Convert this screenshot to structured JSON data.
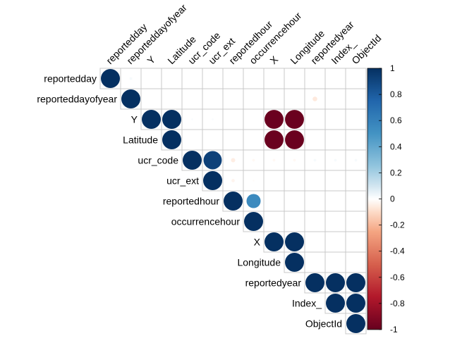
{
  "chart_data": {
    "type": "heatmap",
    "variables": [
      "reportedday",
      "reporteddayofyear",
      "Y",
      "Latitude",
      "ucr_code",
      "ucr_ext",
      "reportedhour",
      "occurrencehour",
      "X",
      "Longitude",
      "reportedyear",
      "Index_",
      "ObjectId"
    ],
    "layout": "upper-triangle",
    "marker": "circle",
    "correlations": [
      [
        1,
        0.02,
        0,
        0,
        0,
        0,
        0,
        0,
        0,
        0,
        0,
        0,
        0
      ],
      [
        0.02,
        1,
        0,
        0,
        0,
        0,
        0,
        0,
        0,
        0,
        -0.06,
        0,
        0
      ],
      [
        0,
        0,
        1,
        1,
        0.01,
        0.01,
        0,
        0,
        -0.99,
        -0.99,
        0,
        0,
        0
      ],
      [
        0,
        0,
        1,
        1,
        0,
        0,
        0,
        0,
        -0.99,
        -0.99,
        0,
        0,
        0
      ],
      [
        0,
        0,
        0.01,
        0,
        1,
        0.92,
        -0.05,
        -0.02,
        -0.02,
        -0.02,
        0.02,
        0.02,
        0.02
      ],
      [
        0,
        0,
        0.01,
        0,
        0.92,
        1,
        -0.03,
        -0.01,
        0,
        0,
        0,
        0,
        0
      ],
      [
        0,
        0,
        0,
        0,
        -0.05,
        -0.03,
        1,
        0.55,
        0,
        0,
        0,
        0,
        0
      ],
      [
        0,
        0,
        0,
        0,
        -0.02,
        -0.01,
        0.55,
        1,
        0,
        0,
        0,
        0,
        0
      ],
      [
        0,
        0,
        -0.99,
        -0.99,
        -0.02,
        0,
        0,
        0,
        1,
        1,
        0,
        0,
        0
      ],
      [
        0,
        0,
        -0.99,
        -0.99,
        -0.02,
        0,
        0,
        0,
        1,
        1,
        0,
        0,
        0
      ],
      [
        0,
        -0.06,
        0,
        0,
        0.02,
        0,
        0,
        0,
        0,
        0,
        1,
        1,
        1
      ],
      [
        0,
        0,
        0,
        0,
        0.02,
        0,
        0,
        0,
        0,
        0,
        1,
        1,
        1
      ],
      [
        0,
        0,
        0,
        0,
        0.02,
        0,
        0,
        0,
        0,
        0,
        1,
        1,
        1
      ]
    ],
    "color_scale": {
      "min": -1,
      "max": 1,
      "ticks": [
        "1",
        "0.8",
        "0.6",
        "0.4",
        "0.2",
        "0",
        "-0.2",
        "-0.4",
        "-0.6",
        "-0.8",
        "-1"
      ],
      "stops": [
        {
          "value": -1,
          "color": "#67001f"
        },
        {
          "value": -0.75,
          "color": "#b2182b"
        },
        {
          "value": -0.5,
          "color": "#d6604d"
        },
        {
          "value": -0.25,
          "color": "#f4a582"
        },
        {
          "value": -0.1,
          "color": "#fddbc7"
        },
        {
          "value": 0,
          "color": "#ffffff"
        },
        {
          "value": 0.1,
          "color": "#d1e5f0"
        },
        {
          "value": 0.25,
          "color": "#92c5de"
        },
        {
          "value": 0.5,
          "color": "#4393c3"
        },
        {
          "value": 0.75,
          "color": "#2166ac"
        },
        {
          "value": 1,
          "color": "#053061"
        }
      ]
    },
    "legend_position": "right",
    "grid_color": "#c8c8c8"
  }
}
